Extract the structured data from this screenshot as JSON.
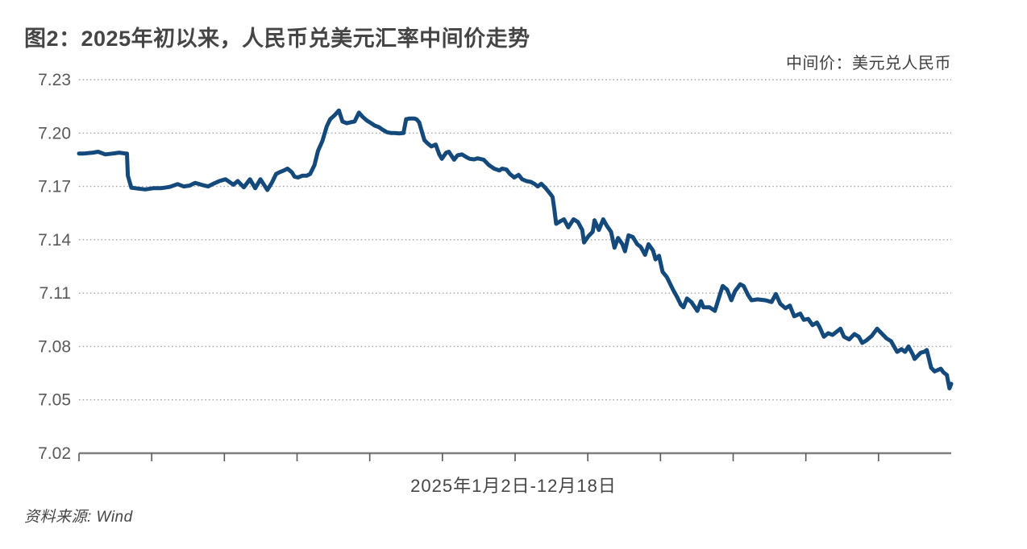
{
  "header": {
    "title": "图2：2025年初以来，人民币兑美元汇率中间价走势"
  },
  "legend": {
    "label": "中间价：美元兑人民币"
  },
  "footer": {
    "source": "资料来源: Wind"
  },
  "chart_data": {
    "type": "line",
    "title": "2025年初以来，人民币兑美元汇率中间价走势",
    "x_range_label": "2025年1月2日-12月18日",
    "xlabel": "2025年1月2日-12月18日",
    "ylabel": "",
    "ylim": [
      7.02,
      7.23
    ],
    "yticks": [
      "7.23",
      "7.20",
      "7.17",
      "7.14",
      "7.11",
      "7.08",
      "7.05",
      "7.02"
    ],
    "x_tick_count": 12,
    "grid": "horizontal-dotted",
    "legend_position": "top-right",
    "colors": {
      "line": "#14497B",
      "grid": "#a8a8a8",
      "axis": "#7f7f7f",
      "tick": "#595959",
      "tick_label": "#595959"
    },
    "series": [
      {
        "name": "中间价：美元兑人民币",
        "points": [
          [
            0.0,
            7.1885
          ],
          [
            0.006,
            7.1885
          ],
          [
            0.016,
            7.189
          ],
          [
            0.022,
            7.1895
          ],
          [
            0.03,
            7.188
          ],
          [
            0.039,
            7.1885
          ],
          [
            0.046,
            7.189
          ],
          [
            0.053,
            7.1885
          ],
          [
            0.055,
            7.1885
          ],
          [
            0.056,
            7.176
          ],
          [
            0.06,
            7.1693
          ],
          [
            0.067,
            7.1688
          ],
          [
            0.076,
            7.1683
          ],
          [
            0.085,
            7.169
          ],
          [
            0.094,
            7.169
          ],
          [
            0.104,
            7.1697
          ],
          [
            0.113,
            7.1713
          ],
          [
            0.12,
            7.17
          ],
          [
            0.127,
            7.1705
          ],
          [
            0.133,
            7.172
          ],
          [
            0.14,
            7.171
          ],
          [
            0.148,
            7.17
          ],
          [
            0.154,
            7.1715
          ],
          [
            0.161,
            7.173
          ],
          [
            0.168,
            7.174
          ],
          [
            0.177,
            7.171
          ],
          [
            0.182,
            7.173
          ],
          [
            0.189,
            7.1695
          ],
          [
            0.196,
            7.174
          ],
          [
            0.202,
            7.169
          ],
          [
            0.208,
            7.174
          ],
          [
            0.216,
            7.168
          ],
          [
            0.221,
            7.172
          ],
          [
            0.226,
            7.177
          ],
          [
            0.23,
            7.178
          ],
          [
            0.235,
            7.179
          ],
          [
            0.239,
            7.18
          ],
          [
            0.244,
            7.178
          ],
          [
            0.247,
            7.1755
          ],
          [
            0.251,
            7.175
          ],
          [
            0.256,
            7.176
          ],
          [
            0.261,
            7.176
          ],
          [
            0.265,
            7.177
          ],
          [
            0.27,
            7.182
          ],
          [
            0.274,
            7.19
          ],
          [
            0.279,
            7.1955
          ],
          [
            0.284,
            7.2037
          ],
          [
            0.288,
            7.2078
          ],
          [
            0.293,
            7.21
          ],
          [
            0.298,
            7.2127
          ],
          [
            0.302,
            7.2065
          ],
          [
            0.307,
            7.2055
          ],
          [
            0.311,
            7.206
          ],
          [
            0.316,
            7.2065
          ],
          [
            0.321,
            7.2115
          ],
          [
            0.325,
            7.2092
          ],
          [
            0.33,
            7.207
          ],
          [
            0.335,
            7.2055
          ],
          [
            0.339,
            7.2042
          ],
          [
            0.344,
            7.2033
          ],
          [
            0.348,
            7.2019
          ],
          [
            0.353,
            7.2005
          ],
          [
            0.358,
            7.2
          ],
          [
            0.362,
            7.2
          ],
          [
            0.367,
            7.1998
          ],
          [
            0.372,
            7.2
          ],
          [
            0.375,
            7.2078
          ],
          [
            0.379,
            7.2082
          ],
          [
            0.384,
            7.2082
          ],
          [
            0.387,
            7.2078
          ],
          [
            0.39,
            7.206
          ],
          [
            0.393,
            7.201
          ],
          [
            0.396,
            7.196
          ],
          [
            0.399,
            7.1945
          ],
          [
            0.404,
            7.1925
          ],
          [
            0.409,
            7.1935
          ],
          [
            0.413,
            7.188
          ],
          [
            0.416,
            7.1855
          ],
          [
            0.421,
            7.189
          ],
          [
            0.424,
            7.1895
          ],
          [
            0.43,
            7.185
          ],
          [
            0.434,
            7.1875
          ],
          [
            0.439,
            7.188
          ],
          [
            0.444,
            7.1865
          ],
          [
            0.448,
            7.1855
          ],
          [
            0.453,
            7.1852
          ],
          [
            0.457,
            7.1858
          ],
          [
            0.464,
            7.185
          ],
          [
            0.47,
            7.182
          ],
          [
            0.476,
            7.18
          ],
          [
            0.482,
            7.179
          ],
          [
            0.485,
            7.18
          ],
          [
            0.49,
            7.1795
          ],
          [
            0.494,
            7.177
          ],
          [
            0.499,
            7.175
          ],
          [
            0.504,
            7.1765
          ],
          [
            0.508,
            7.174
          ],
          [
            0.513,
            7.173
          ],
          [
            0.518,
            7.1725
          ],
          [
            0.522,
            7.1715
          ],
          [
            0.526,
            7.17
          ],
          [
            0.53,
            7.1715
          ],
          [
            0.535,
            7.169
          ],
          [
            0.54,
            7.166
          ],
          [
            0.543,
            7.164
          ],
          [
            0.545,
            7.157
          ],
          [
            0.547,
            7.149
          ],
          [
            0.552,
            7.1505
          ],
          [
            0.556,
            7.1515
          ],
          [
            0.561,
            7.147
          ],
          [
            0.567,
            7.1515
          ],
          [
            0.572,
            7.15
          ],
          [
            0.577,
            7.1455
          ],
          [
            0.579,
            7.1385
          ],
          [
            0.584,
            7.142
          ],
          [
            0.589,
            7.1445
          ],
          [
            0.591,
            7.151
          ],
          [
            0.596,
            7.1455
          ],
          [
            0.601,
            7.1515
          ],
          [
            0.605,
            7.148
          ],
          [
            0.61,
            7.1445
          ],
          [
            0.614,
            7.1355
          ],
          [
            0.618,
            7.141
          ],
          [
            0.623,
            7.1375
          ],
          [
            0.626,
            7.1335
          ],
          [
            0.63,
            7.1425
          ],
          [
            0.635,
            7.1415
          ],
          [
            0.64,
            7.1375
          ],
          [
            0.644,
            7.136
          ],
          [
            0.649,
            7.1315
          ],
          [
            0.653,
            7.1375
          ],
          [
            0.658,
            7.134
          ],
          [
            0.661,
            7.129
          ],
          [
            0.665,
            7.131
          ],
          [
            0.669,
            7.122
          ],
          [
            0.674,
            7.119
          ],
          [
            0.677,
            7.116
          ],
          [
            0.681,
            7.112
          ],
          [
            0.686,
            7.1075
          ],
          [
            0.69,
            7.1035
          ],
          [
            0.693,
            7.102
          ],
          [
            0.697,
            7.107
          ],
          [
            0.702,
            7.105
          ],
          [
            0.709,
            7.1
          ],
          [
            0.713,
            7.1055
          ],
          [
            0.716,
            7.102
          ],
          [
            0.723,
            7.102
          ],
          [
            0.729,
            7.1
          ],
          [
            0.734,
            7.108
          ],
          [
            0.738,
            7.114
          ],
          [
            0.743,
            7.112
          ],
          [
            0.748,
            7.106
          ],
          [
            0.752,
            7.111
          ],
          [
            0.758,
            7.115
          ],
          [
            0.762,
            7.114
          ],
          [
            0.767,
            7.109
          ],
          [
            0.771,
            7.106
          ],
          [
            0.778,
            7.1065
          ],
          [
            0.787,
            7.106
          ],
          [
            0.794,
            7.105
          ],
          [
            0.799,
            7.1095
          ],
          [
            0.804,
            7.104
          ],
          [
            0.81,
            7.1015
          ],
          [
            0.815,
            7.103
          ],
          [
            0.82,
            7.097
          ],
          [
            0.827,
            7.0985
          ],
          [
            0.831,
            7.095
          ],
          [
            0.836,
            7.0955
          ],
          [
            0.841,
            7.092
          ],
          [
            0.846,
            7.0935
          ],
          [
            0.849,
            7.091
          ],
          [
            0.854,
            7.0855
          ],
          [
            0.859,
            7.0875
          ],
          [
            0.864,
            7.0865
          ],
          [
            0.873,
            7.09
          ],
          [
            0.877,
            7.0855
          ],
          [
            0.883,
            7.084
          ],
          [
            0.889,
            7.087
          ],
          [
            0.894,
            7.0855
          ],
          [
            0.898,
            7.082
          ],
          [
            0.903,
            7.0835
          ],
          [
            0.909,
            7.086
          ],
          [
            0.915,
            7.09
          ],
          [
            0.92,
            7.0875
          ],
          [
            0.926,
            7.0845
          ],
          [
            0.931,
            7.083
          ],
          [
            0.938,
            7.077
          ],
          [
            0.943,
            7.0785
          ],
          [
            0.947,
            7.077
          ],
          [
            0.951,
            7.08
          ],
          [
            0.956,
            7.0755
          ],
          [
            0.958,
            7.073
          ],
          [
            0.965,
            7.0765
          ],
          [
            0.969,
            7.077
          ],
          [
            0.972,
            7.078
          ],
          [
            0.977,
            7.068
          ],
          [
            0.981,
            7.066
          ],
          [
            0.988,
            7.0675
          ],
          [
            0.991,
            7.0655
          ],
          [
            0.995,
            7.064
          ],
          [
            0.998,
            7.0565
          ],
          [
            1.0,
            7.059
          ]
        ]
      }
    ]
  }
}
